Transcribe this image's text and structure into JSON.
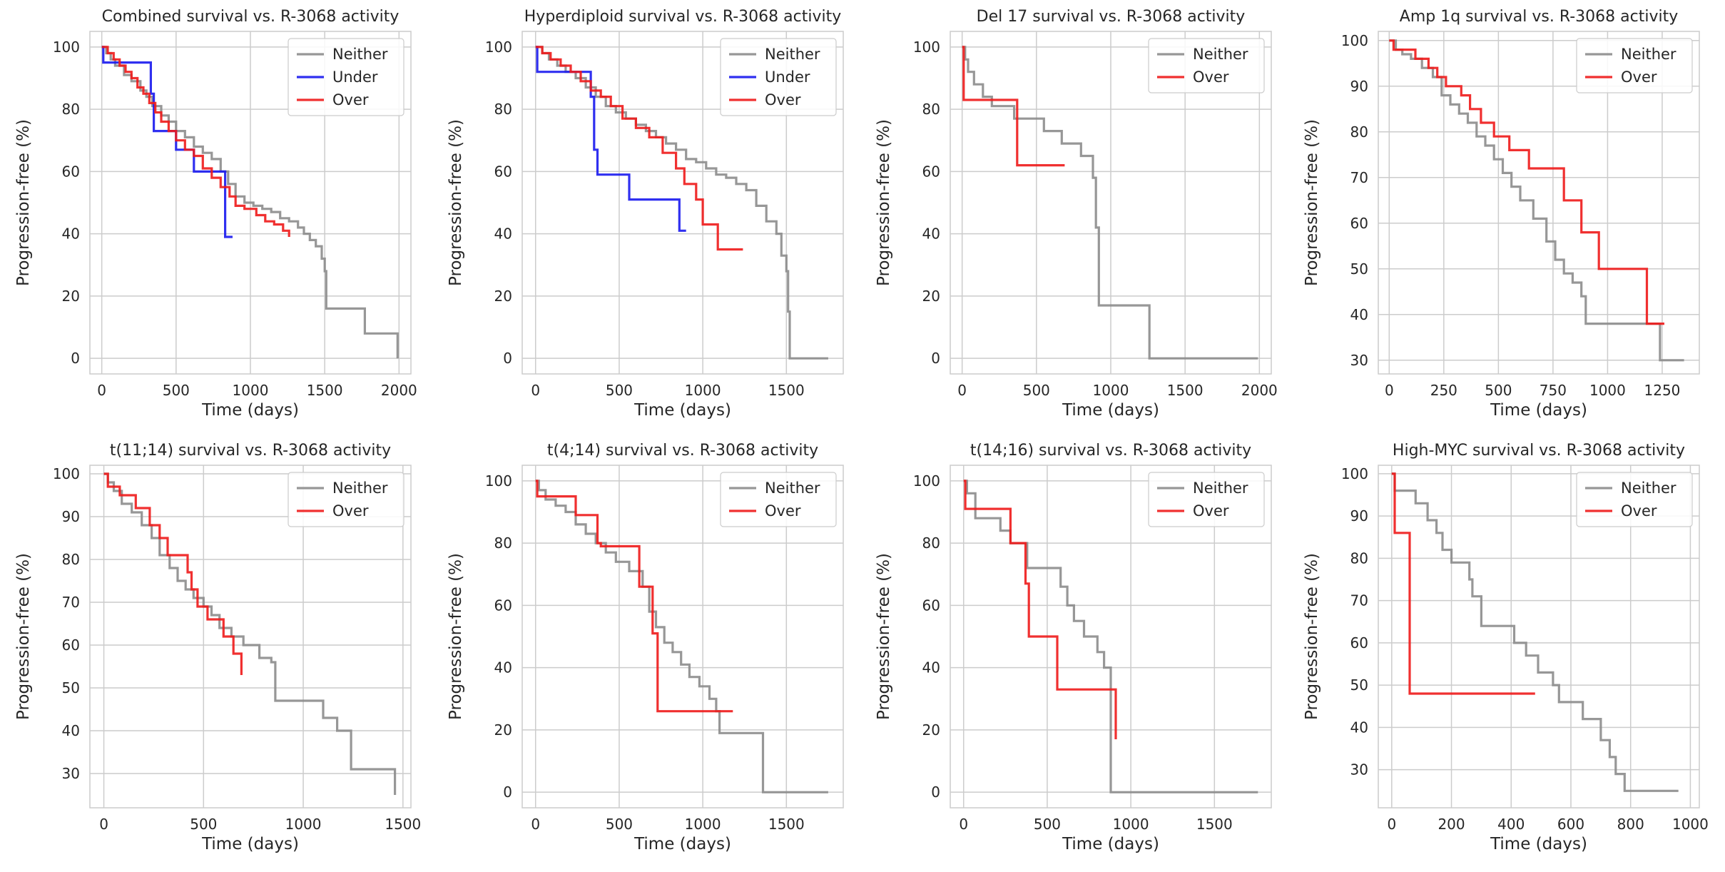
{
  "colors": {
    "neither": "#8c8c8c",
    "under": "#1a1aee",
    "over": "#ee1a1a",
    "grid": "#cccccc",
    "frame": "#cccccc"
  },
  "chart_data": [
    {
      "type": "line",
      "title": "Combined survival vs. R-3068 activity",
      "xlabel": "Time (days)",
      "ylabel": "Progression-free (%)",
      "xlim": [
        -80,
        2080
      ],
      "ylim": [
        -5,
        105
      ],
      "xticks": [
        0,
        500,
        1000,
        1500,
        2000
      ],
      "yticks": [
        0,
        20,
        40,
        60,
        80,
        100
      ],
      "legend": {
        "position": "top-right",
        "entries": [
          "Neither",
          "Under",
          "Over"
        ]
      },
      "grid": true,
      "series": [
        {
          "name": "Neither",
          "color": "neither",
          "x": [
            0,
            30,
            60,
            90,
            150,
            200,
            260,
            300,
            340,
            400,
            450,
            500,
            560,
            620,
            680,
            740,
            800,
            850,
            900,
            960,
            1020,
            1080,
            1140,
            1200,
            1260,
            1320,
            1360,
            1400,
            1440,
            1480,
            1500,
            1510,
            1760,
            1770,
            1990
          ],
          "y": [
            100,
            98,
            96,
            94,
            91,
            89,
            86,
            84,
            81,
            78,
            76,
            73,
            71,
            68,
            66,
            64,
            60,
            56,
            52,
            50,
            49,
            48,
            47,
            45,
            44,
            42,
            40,
            38,
            36,
            32,
            28,
            16,
            16,
            8,
            0
          ]
        },
        {
          "name": "Under",
          "color": "under",
          "x": [
            0,
            10,
            260,
            330,
            350,
            500,
            620,
            830,
            880
          ],
          "y": [
            100,
            95,
            95,
            85,
            73,
            67,
            60,
            39,
            39
          ]
        },
        {
          "name": "Over",
          "color": "over",
          "x": [
            0,
            40,
            80,
            120,
            160,
            200,
            240,
            280,
            320,
            360,
            400,
            450,
            500,
            560,
            620,
            680,
            740,
            800,
            860,
            900,
            960,
            1040,
            1100,
            1160,
            1220,
            1260
          ],
          "y": [
            100,
            98,
            96,
            94,
            92,
            90,
            87,
            85,
            82,
            79,
            76,
            73,
            70,
            67,
            65,
            61,
            58,
            55,
            52,
            49,
            48,
            46,
            44,
            43,
            41,
            39
          ]
        }
      ]
    },
    {
      "type": "line",
      "title": "Hyperdiploid survival vs. R-3068 activity",
      "xlabel": "Time (days)",
      "ylabel": "Progression-free (%)",
      "xlim": [
        -80,
        1840
      ],
      "ylim": [
        -5,
        105
      ],
      "xticks": [
        0,
        500,
        1000,
        1500
      ],
      "yticks": [
        0,
        20,
        40,
        60,
        80,
        100
      ],
      "legend": {
        "position": "top-right",
        "entries": [
          "Neither",
          "Under",
          "Over"
        ]
      },
      "grid": true,
      "series": [
        {
          "name": "Neither",
          "color": "neither",
          "x": [
            0,
            40,
            80,
            130,
            180,
            240,
            300,
            360,
            420,
            480,
            540,
            600,
            660,
            720,
            780,
            840,
            900,
            960,
            1020,
            1080,
            1140,
            1200,
            1260,
            1320,
            1380,
            1440,
            1470,
            1500,
            1510,
            1520,
            1750
          ],
          "y": [
            100,
            98,
            96,
            94,
            92,
            90,
            87,
            84,
            81,
            79,
            77,
            75,
            73,
            71,
            69,
            67,
            64,
            63,
            61,
            59,
            58,
            56,
            54,
            49,
            44,
            40,
            33,
            28,
            15,
            0,
            0
          ]
        },
        {
          "name": "Under",
          "color": "under",
          "x": [
            0,
            10,
            230,
            330,
            350,
            370,
            560,
            860,
            900
          ],
          "y": [
            100,
            92,
            92,
            84,
            67,
            59,
            51,
            41,
            41
          ]
        },
        {
          "name": "Over",
          "color": "over",
          "x": [
            0,
            40,
            90,
            150,
            210,
            270,
            330,
            390,
            450,
            520,
            600,
            680,
            760,
            840,
            890,
            960,
            1000,
            1090,
            1240
          ],
          "y": [
            100,
            98,
            96,
            94,
            92,
            89,
            86,
            84,
            81,
            77,
            74,
            71,
            66,
            61,
            56,
            51,
            43,
            35,
            35
          ]
        }
      ]
    },
    {
      "type": "line",
      "title": "Del 17 survival vs. R-3068 activity",
      "xlabel": "Time (days)",
      "ylabel": "Progression-free (%)",
      "xlim": [
        -80,
        2080
      ],
      "ylim": [
        -5,
        105
      ],
      "xticks": [
        0,
        500,
        1000,
        1500,
        2000
      ],
      "yticks": [
        0,
        20,
        40,
        60,
        80,
        100
      ],
      "legend": {
        "position": "top-right",
        "entries": [
          "Neither",
          "Over"
        ]
      },
      "grid": true,
      "series": [
        {
          "name": "Neither",
          "color": "neither",
          "x": [
            0,
            20,
            40,
            80,
            140,
            200,
            350,
            550,
            670,
            800,
            880,
            900,
            920,
            1260,
            1990
          ],
          "y": [
            100,
            96,
            92,
            88,
            84,
            81,
            77,
            73,
            69,
            65,
            58,
            42,
            17,
            0,
            0
          ]
        },
        {
          "name": "Over",
          "color": "over",
          "x": [
            0,
            10,
            370,
            690
          ],
          "y": [
            100,
            83,
            62,
            62
          ]
        }
      ]
    },
    {
      "type": "line",
      "title": "Amp 1q survival vs. R-3068 activity",
      "xlabel": "Time (days)",
      "ylabel": "Progression-free (%)",
      "xlim": [
        -50,
        1420
      ],
      "ylim": [
        27,
        102
      ],
      "xticks": [
        0,
        250,
        500,
        750,
        1000,
        1250
      ],
      "yticks": [
        30,
        40,
        50,
        60,
        70,
        80,
        90,
        100
      ],
      "legend": {
        "position": "top-right",
        "entries": [
          "Neither",
          "Over"
        ]
      },
      "grid": true,
      "series": [
        {
          "name": "Neither",
          "color": "neither",
          "x": [
            0,
            30,
            60,
            100,
            150,
            200,
            240,
            280,
            320,
            360,
            400,
            440,
            480,
            520,
            560,
            600,
            660,
            720,
            760,
            800,
            840,
            880,
            900,
            1000,
            1100,
            1220,
            1240,
            1350
          ],
          "y": [
            100,
            98,
            97,
            96,
            94,
            92,
            88,
            86,
            84,
            82,
            79,
            77,
            74,
            71,
            68,
            65,
            61,
            56,
            52,
            49,
            47,
            44,
            38,
            38,
            38,
            38,
            30,
            30
          ]
        },
        {
          "name": "Over",
          "color": "over",
          "x": [
            0,
            20,
            120,
            180,
            220,
            260,
            330,
            370,
            420,
            480,
            550,
            640,
            800,
            880,
            960,
            1040,
            1180,
            1260
          ],
          "y": [
            100,
            98,
            96,
            94,
            92,
            90,
            88,
            85,
            82,
            79,
            76,
            72,
            65,
            58,
            50,
            50,
            38,
            38
          ]
        }
      ]
    },
    {
      "type": "line",
      "title": "t(11;14) survival vs. R-3068 activity",
      "xlabel": "Time (days)",
      "ylabel": "Progression-free (%)",
      "xlim": [
        -70,
        1540
      ],
      "ylim": [
        22,
        102
      ],
      "xticks": [
        0,
        500,
        1000,
        1500
      ],
      "yticks": [
        30,
        40,
        50,
        60,
        70,
        80,
        90,
        100
      ],
      "legend": {
        "position": "top-right",
        "entries": [
          "Neither",
          "Over"
        ]
      },
      "grid": true,
      "series": [
        {
          "name": "Neither",
          "color": "neither",
          "x": [
            0,
            20,
            50,
            90,
            140,
            190,
            240,
            280,
            330,
            370,
            410,
            450,
            500,
            540,
            580,
            640,
            700,
            780,
            840,
            860,
            1040,
            1100,
            1170,
            1240,
            1460
          ],
          "y": [
            100,
            98,
            96,
            93,
            91,
            88,
            85,
            81,
            78,
            75,
            73,
            71,
            69,
            67,
            64,
            62,
            60,
            57,
            56,
            47,
            47,
            43,
            40,
            31,
            25
          ]
        },
        {
          "name": "Over",
          "color": "over",
          "x": [
            0,
            20,
            80,
            160,
            230,
            280,
            320,
            420,
            440,
            470,
            520,
            600,
            650,
            690
          ],
          "y": [
            100,
            97,
            95,
            92,
            88,
            85,
            81,
            77,
            73,
            69,
            66,
            62,
            58,
            53
          ]
        }
      ]
    },
    {
      "type": "line",
      "title": "t(4;14) survival vs. R-3068 activity",
      "xlabel": "Time (days)",
      "ylabel": "Progression-free (%)",
      "xlim": [
        -80,
        1840
      ],
      "ylim": [
        -5,
        105
      ],
      "xticks": [
        0,
        500,
        1000,
        1500
      ],
      "yticks": [
        0,
        20,
        40,
        60,
        80,
        100
      ],
      "legend": {
        "position": "top-right",
        "entries": [
          "Neither",
          "Over"
        ]
      },
      "grid": true,
      "series": [
        {
          "name": "Neither",
          "color": "neither",
          "x": [
            0,
            20,
            60,
            120,
            180,
            240,
            300,
            360,
            420,
            480,
            560,
            640,
            680,
            720,
            770,
            820,
            870,
            920,
            980,
            1040,
            1080,
            1100,
            1360,
            1750
          ],
          "y": [
            100,
            97,
            94,
            92,
            90,
            86,
            83,
            80,
            77,
            74,
            71,
            66,
            58,
            53,
            48,
            45,
            41,
            37,
            34,
            30,
            26,
            19,
            0,
            0
          ]
        },
        {
          "name": "Over",
          "color": "over",
          "x": [
            0,
            10,
            240,
            370,
            390,
            620,
            700,
            730,
            1180
          ],
          "y": [
            100,
            95,
            89,
            80,
            79,
            66,
            51,
            26,
            26
          ]
        }
      ]
    },
    {
      "type": "line",
      "title": "t(14;16) survival vs. R-3068 activity",
      "xlabel": "Time (days)",
      "ylabel": "Progression-free (%)",
      "xlim": [
        -80,
        1840
      ],
      "ylim": [
        -5,
        105
      ],
      "xticks": [
        0,
        500,
        1000,
        1500
      ],
      "yticks": [
        0,
        20,
        40,
        60,
        80,
        100
      ],
      "legend": {
        "position": "top-right",
        "entries": [
          "Neither",
          "Over"
        ]
      },
      "grid": true,
      "series": [
        {
          "name": "Neither",
          "color": "neither",
          "x": [
            0,
            20,
            70,
            220,
            280,
            380,
            560,
            580,
            620,
            660,
            720,
            800,
            840,
            880,
            1760
          ],
          "y": [
            100,
            96,
            88,
            84,
            80,
            72,
            72,
            66,
            60,
            55,
            50,
            45,
            40,
            0,
            0
          ]
        },
        {
          "name": "Over",
          "color": "over",
          "x": [
            0,
            10,
            280,
            370,
            390,
            560,
            900,
            910
          ],
          "y": [
            100,
            91,
            80,
            67,
            50,
            33,
            33,
            17
          ]
        }
      ]
    },
    {
      "type": "line",
      "title": "High-MYC survival vs. R-3068 activity",
      "xlabel": "Time (days)",
      "ylabel": "Progression-free (%)",
      "xlim": [
        -45,
        1030
      ],
      "ylim": [
        21,
        102
      ],
      "xticks": [
        0,
        200,
        400,
        600,
        800,
        1000
      ],
      "yticks": [
        30,
        40,
        50,
        60,
        70,
        80,
        90,
        100
      ],
      "legend": {
        "position": "top-right",
        "entries": [
          "Neither",
          "Over"
        ]
      },
      "grid": true,
      "series": [
        {
          "name": "Neither",
          "color": "neither",
          "x": [
            0,
            10,
            80,
            120,
            150,
            170,
            200,
            260,
            270,
            300,
            410,
            450,
            490,
            540,
            560,
            640,
            700,
            730,
            750,
            780,
            960
          ],
          "y": [
            100,
            96,
            93,
            89,
            86,
            82,
            79,
            75,
            71,
            64,
            60,
            57,
            53,
            50,
            46,
            42,
            37,
            33,
            29,
            25,
            25
          ]
        },
        {
          "name": "Over",
          "color": "over",
          "x": [
            0,
            10,
            60,
            480
          ],
          "y": [
            100,
            86,
            48,
            48
          ]
        }
      ]
    }
  ]
}
